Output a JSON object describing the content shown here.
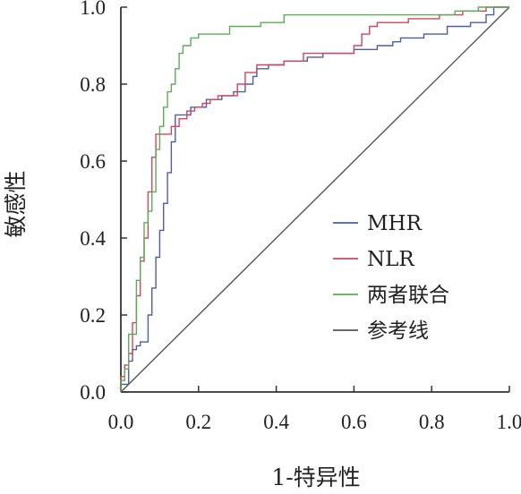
{
  "chart_data": {
    "type": "line",
    "xlabel": "1-特异性",
    "ylabel": "敏感性",
    "xlim": [
      0,
      1
    ],
    "ylim": [
      0,
      1
    ],
    "xticks": [
      "0.0",
      "0.2",
      "0.4",
      "0.6",
      "0.8",
      "1.0"
    ],
    "yticks": [
      "0.0",
      "0.2",
      "0.4",
      "0.6",
      "0.8",
      "1.0"
    ],
    "grid": false,
    "legend_position": "right-middle",
    "series": [
      {
        "name": "MHR",
        "color": "#4a5fa8",
        "points": [
          [
            0,
            0
          ],
          [
            0,
            0.02
          ],
          [
            0.02,
            0.02
          ],
          [
            0.02,
            0.08
          ],
          [
            0.03,
            0.08
          ],
          [
            0.03,
            0.11
          ],
          [
            0.04,
            0.11
          ],
          [
            0.04,
            0.12
          ],
          [
            0.05,
            0.12
          ],
          [
            0.05,
            0.13
          ],
          [
            0.07,
            0.13
          ],
          [
            0.07,
            0.2
          ],
          [
            0.08,
            0.2
          ],
          [
            0.08,
            0.27
          ],
          [
            0.09,
            0.27
          ],
          [
            0.09,
            0.35
          ],
          [
            0.1,
            0.35
          ],
          [
            0.1,
            0.42
          ],
          [
            0.11,
            0.42
          ],
          [
            0.11,
            0.49
          ],
          [
            0.12,
            0.49
          ],
          [
            0.12,
            0.57
          ],
          [
            0.13,
            0.57
          ],
          [
            0.13,
            0.65
          ],
          [
            0.14,
            0.65
          ],
          [
            0.14,
            0.72
          ],
          [
            0.18,
            0.72
          ],
          [
            0.18,
            0.74
          ],
          [
            0.22,
            0.74
          ],
          [
            0.22,
            0.76
          ],
          [
            0.26,
            0.76
          ],
          [
            0.26,
            0.77
          ],
          [
            0.29,
            0.77
          ],
          [
            0.29,
            0.78
          ],
          [
            0.32,
            0.78
          ],
          [
            0.32,
            0.8
          ],
          [
            0.34,
            0.8
          ],
          [
            0.34,
            0.82
          ],
          [
            0.35,
            0.82
          ],
          [
            0.35,
            0.84
          ],
          [
            0.38,
            0.84
          ],
          [
            0.38,
            0.85
          ],
          [
            0.42,
            0.85
          ],
          [
            0.42,
            0.86
          ],
          [
            0.48,
            0.86
          ],
          [
            0.48,
            0.87
          ],
          [
            0.52,
            0.87
          ],
          [
            0.52,
            0.88
          ],
          [
            0.6,
            0.88
          ],
          [
            0.6,
            0.89
          ],
          [
            0.66,
            0.89
          ],
          [
            0.66,
            0.9
          ],
          [
            0.7,
            0.9
          ],
          [
            0.7,
            0.91
          ],
          [
            0.72,
            0.91
          ],
          [
            0.72,
            0.92
          ],
          [
            0.78,
            0.92
          ],
          [
            0.78,
            0.93
          ],
          [
            0.84,
            0.93
          ],
          [
            0.84,
            0.95
          ],
          [
            0.9,
            0.95
          ],
          [
            0.9,
            0.96
          ],
          [
            0.94,
            0.96
          ],
          [
            0.94,
            0.98
          ],
          [
            0.96,
            0.98
          ],
          [
            0.96,
            1.0
          ],
          [
            1.0,
            1.0
          ]
        ]
      },
      {
        "name": "NLR",
        "color": "#d6435e",
        "points": [
          [
            0,
            0
          ],
          [
            0,
            0.04
          ],
          [
            0.01,
            0.04
          ],
          [
            0.01,
            0.07
          ],
          [
            0.02,
            0.07
          ],
          [
            0.02,
            0.1
          ],
          [
            0.03,
            0.1
          ],
          [
            0.03,
            0.18
          ],
          [
            0.04,
            0.18
          ],
          [
            0.04,
            0.25
          ],
          [
            0.05,
            0.25
          ],
          [
            0.05,
            0.34
          ],
          [
            0.06,
            0.34
          ],
          [
            0.06,
            0.4
          ],
          [
            0.07,
            0.4
          ],
          [
            0.07,
            0.52
          ],
          [
            0.08,
            0.52
          ],
          [
            0.08,
            0.61
          ],
          [
            0.09,
            0.61
          ],
          [
            0.09,
            0.67
          ],
          [
            0.13,
            0.67
          ],
          [
            0.13,
            0.69
          ],
          [
            0.15,
            0.69
          ],
          [
            0.15,
            0.71
          ],
          [
            0.17,
            0.71
          ],
          [
            0.17,
            0.73
          ],
          [
            0.19,
            0.73
          ],
          [
            0.19,
            0.74
          ],
          [
            0.21,
            0.74
          ],
          [
            0.21,
            0.75
          ],
          [
            0.23,
            0.75
          ],
          [
            0.23,
            0.76
          ],
          [
            0.25,
            0.76
          ],
          [
            0.25,
            0.77
          ],
          [
            0.3,
            0.77
          ],
          [
            0.3,
            0.8
          ],
          [
            0.32,
            0.8
          ],
          [
            0.32,
            0.83
          ],
          [
            0.35,
            0.83
          ],
          [
            0.35,
            0.85
          ],
          [
            0.42,
            0.85
          ],
          [
            0.42,
            0.86
          ],
          [
            0.47,
            0.86
          ],
          [
            0.47,
            0.88
          ],
          [
            0.6,
            0.88
          ],
          [
            0.6,
            0.9
          ],
          [
            0.62,
            0.9
          ],
          [
            0.62,
            0.93
          ],
          [
            0.64,
            0.93
          ],
          [
            0.64,
            0.95
          ],
          [
            0.66,
            0.95
          ],
          [
            0.66,
            0.96
          ],
          [
            0.74,
            0.96
          ],
          [
            0.74,
            0.97
          ],
          [
            0.82,
            0.97
          ],
          [
            0.82,
            0.98
          ],
          [
            0.88,
            0.98
          ],
          [
            0.88,
            0.99
          ],
          [
            0.94,
            0.99
          ],
          [
            0.94,
            1.0
          ],
          [
            1.0,
            1.0
          ]
        ]
      },
      {
        "name": "两者联合",
        "color": "#5aae54",
        "points": [
          [
            0,
            0
          ],
          [
            0,
            0.03
          ],
          [
            0.01,
            0.03
          ],
          [
            0.01,
            0.06
          ],
          [
            0.02,
            0.06
          ],
          [
            0.02,
            0.15
          ],
          [
            0.04,
            0.15
          ],
          [
            0.04,
            0.29
          ],
          [
            0.05,
            0.29
          ],
          [
            0.05,
            0.35
          ],
          [
            0.06,
            0.35
          ],
          [
            0.06,
            0.44
          ],
          [
            0.07,
            0.44
          ],
          [
            0.07,
            0.47
          ],
          [
            0.08,
            0.47
          ],
          [
            0.08,
            0.52
          ],
          [
            0.09,
            0.52
          ],
          [
            0.09,
            0.63
          ],
          [
            0.1,
            0.63
          ],
          [
            0.1,
            0.69
          ],
          [
            0.11,
            0.69
          ],
          [
            0.11,
            0.74
          ],
          [
            0.12,
            0.74
          ],
          [
            0.12,
            0.78
          ],
          [
            0.13,
            0.78
          ],
          [
            0.13,
            0.8
          ],
          [
            0.14,
            0.8
          ],
          [
            0.14,
            0.84
          ],
          [
            0.15,
            0.84
          ],
          [
            0.15,
            0.88
          ],
          [
            0.16,
            0.88
          ],
          [
            0.16,
            0.9
          ],
          [
            0.18,
            0.9
          ],
          [
            0.18,
            0.92
          ],
          [
            0.2,
            0.92
          ],
          [
            0.2,
            0.93
          ],
          [
            0.28,
            0.93
          ],
          [
            0.28,
            0.95
          ],
          [
            0.36,
            0.95
          ],
          [
            0.36,
            0.96
          ],
          [
            0.42,
            0.96
          ],
          [
            0.42,
            0.98
          ],
          [
            0.86,
            0.98
          ],
          [
            0.86,
            0.99
          ],
          [
            0.92,
            0.99
          ],
          [
            0.92,
            1.0
          ],
          [
            1.0,
            1.0
          ]
        ]
      },
      {
        "name": "参考线",
        "color": "#555555",
        "points": [
          [
            0,
            0
          ],
          [
            1,
            1
          ]
        ]
      }
    ]
  }
}
